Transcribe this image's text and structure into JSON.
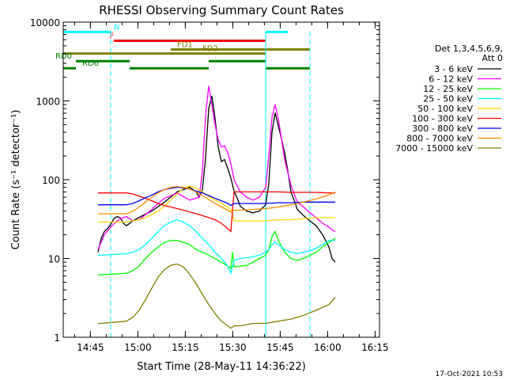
{
  "chart_data": {
    "type": "line",
    "title": "RHESSI Observing Summary Count Rates",
    "xlabel": "Start Time (28-May-11 14:36:22)",
    "ylabel": "Count Rate (s⁻¹ detector⁻¹)",
    "x_units": "minutes after 14:36:22",
    "xlim": [
      0,
      100
    ],
    "ylim": [
      1,
      10000
    ],
    "yscale": "log",
    "grid": false,
    "x_ticks": [
      {
        "value": 8.6,
        "label": "14:45"
      },
      {
        "value": 23.6,
        "label": "15:00"
      },
      {
        "value": 38.6,
        "label": "15:15"
      },
      {
        "value": 53.6,
        "label": "15:30"
      },
      {
        "value": 68.6,
        "label": "15:45"
      },
      {
        "value": 83.6,
        "label": "16:00"
      },
      {
        "value": 98.6,
        "label": "16:15"
      }
    ],
    "y_ticks": [
      {
        "value": 1,
        "label": "1"
      },
      {
        "value": 10,
        "label": "10"
      },
      {
        "value": 100,
        "label": "100"
      },
      {
        "value": 1000,
        "label": "1000"
      },
      {
        "value": 10000,
        "label": "10000"
      }
    ],
    "legend_header": [
      "Det 1,3,4,5,6,9,",
      "Att 0"
    ],
    "legend_position": "right",
    "series": [
      {
        "name": "3 - 6 keV",
        "color": "#000000",
        "x": [
          11,
          12,
          13,
          14,
          15,
          16,
          17,
          18,
          19,
          20,
          22,
          25,
          28,
          32,
          36,
          40,
          42,
          43,
          44,
          45,
          46,
          47,
          48,
          49,
          50,
          51,
          52,
          53,
          54,
          55,
          56,
          58,
          60,
          62,
          64,
          65,
          66,
          67,
          68,
          69,
          70,
          71,
          72,
          73,
          74,
          76,
          78,
          80,
          82,
          84,
          85,
          86
        ],
        "y": [
          12,
          18,
          22,
          24,
          27,
          32,
          34,
          33,
          28,
          26,
          30,
          35,
          40,
          52,
          70,
          80,
          70,
          60,
          75,
          190,
          800,
          1150,
          600,
          260,
          170,
          180,
          140,
          105,
          72,
          58,
          46,
          40,
          38,
          40,
          48,
          90,
          400,
          710,
          480,
          330,
          220,
          130,
          70,
          55,
          42,
          35,
          30,
          26,
          20,
          14,
          10,
          9
        ]
      },
      {
        "name": "6 - 12 keV",
        "color": "#ff00ff",
        "x": [
          11,
          13,
          15,
          17,
          19,
          20,
          22,
          24,
          26,
          28,
          30,
          32,
          36,
          40,
          43,
          44,
          45,
          46,
          47,
          48,
          49,
          50,
          51,
          52,
          53,
          54,
          56,
          58,
          60,
          62,
          64,
          65,
          66,
          67,
          68,
          69,
          70,
          72,
          74,
          76,
          78,
          80,
          82,
          84,
          85,
          86
        ],
        "y": [
          13,
          20,
          25,
          30,
          33,
          34,
          30,
          31,
          36,
          42,
          50,
          58,
          68,
          55,
          60,
          130,
          640,
          1550,
          900,
          500,
          320,
          260,
          270,
          220,
          160,
          100,
          70,
          60,
          55,
          60,
          80,
          200,
          620,
          900,
          600,
          330,
          180,
          85,
          52,
          45,
          38,
          33,
          28,
          25,
          23,
          22
        ]
      },
      {
        "name": "12 - 25 keV",
        "color": "#00ff00",
        "x": [
          11,
          12,
          20,
          22,
          24,
          26,
          28,
          30,
          32,
          34,
          36,
          38,
          40,
          42,
          44,
          46,
          48,
          50,
          52,
          53,
          53.5,
          54,
          56,
          58,
          60,
          62,
          64,
          65,
          66,
          67,
          68,
          70,
          72,
          74,
          76,
          78,
          80,
          82,
          84,
          86
        ],
        "y": [
          6.2,
          6.2,
          6.5,
          7,
          8,
          10,
          12,
          14,
          16,
          17,
          17,
          16,
          15,
          13,
          12,
          11,
          10,
          9,
          8,
          7.5,
          12,
          7.8,
          8,
          8.2,
          9,
          10,
          11,
          13,
          19,
          22,
          17,
          12,
          10,
          9.5,
          10,
          11,
          12,
          14,
          16,
          18
        ]
      },
      {
        "name": "25 - 50 keV",
        "color": "#00ffff",
        "x": [
          11,
          12,
          20,
          22,
          24,
          26,
          28,
          30,
          32,
          34,
          36,
          38,
          40,
          42,
          44,
          46,
          48,
          50,
          52,
          53,
          54,
          56,
          58,
          60,
          62,
          64,
          65,
          66,
          67,
          68,
          70,
          72,
          74,
          76,
          78,
          80,
          82,
          84,
          86
        ],
        "y": [
          11,
          11,
          11.5,
          12,
          13,
          15,
          18,
          22,
          26,
          29,
          31,
          29,
          26,
          22,
          18,
          15,
          12,
          10,
          8,
          6.5,
          9.5,
          10,
          10.2,
          10.5,
          11,
          12,
          13,
          15,
          16,
          15,
          13,
          12,
          11.5,
          12,
          12.5,
          13.5,
          15,
          17,
          17
        ]
      },
      {
        "name": "50 - 100 keV",
        "color": "#ffd700",
        "x": [
          11,
          12,
          20,
          22,
          24,
          26,
          28,
          30,
          32,
          34,
          36,
          38,
          40,
          42,
          44,
          46,
          48,
          50,
          52,
          53,
          54,
          56,
          60,
          64,
          68,
          72,
          76,
          80,
          84,
          86
        ],
        "y": [
          29,
          29,
          29,
          30,
          31,
          33,
          36,
          40,
          46,
          55,
          66,
          78,
          83,
          78,
          70,
          61,
          55,
          50,
          45,
          42,
          30,
          30,
          30,
          30,
          31,
          31,
          32,
          33,
          33,
          33
        ]
      },
      {
        "name": "100 - 300 keV",
        "color": "#ff0000",
        "x": [
          11,
          12,
          20,
          22,
          24,
          26,
          28,
          30,
          32,
          34,
          36,
          38,
          40,
          42,
          44,
          46,
          48,
          50,
          52,
          53,
          54,
          56,
          60,
          64,
          68,
          72,
          76,
          80,
          84,
          86
        ],
        "y": [
          68,
          68,
          68,
          66,
          62,
          58,
          54,
          50,
          47,
          45,
          43,
          41,
          39,
          37,
          35,
          33,
          31,
          28,
          24,
          22,
          70,
          70,
          70,
          70,
          70,
          69,
          69,
          69,
          68,
          68
        ]
      },
      {
        "name": "300 - 800 keV",
        "color": "#0000ff",
        "x": [
          11,
          12,
          20,
          22,
          24,
          26,
          28,
          30,
          32,
          34,
          36,
          38,
          40,
          42,
          44,
          46,
          48,
          50,
          52,
          53,
          54,
          56,
          60,
          64,
          68,
          72,
          76,
          80,
          84,
          86
        ],
        "y": [
          48,
          48,
          48,
          50,
          54,
          59,
          64,
          70,
          75,
          78,
          80,
          79,
          76,
          72,
          68,
          63,
          58,
          54,
          50,
          47,
          50,
          50,
          50,
          50,
          51,
          51,
          52,
          52,
          52,
          52
        ]
      },
      {
        "name": "800 - 7000 keV",
        "color": "#ff8c00",
        "x": [
          11,
          12,
          20,
          22,
          24,
          26,
          28,
          30,
          32,
          34,
          36,
          38,
          40,
          42,
          44,
          46,
          48,
          50,
          52,
          53,
          54,
          56,
          60,
          64,
          68,
          72,
          76,
          80,
          84,
          86
        ],
        "y": [
          37,
          37,
          37,
          40,
          45,
          52,
          60,
          68,
          75,
          80,
          82,
          80,
          76,
          70,
          63,
          56,
          50,
          45,
          41,
          39,
          41,
          41,
          42,
          43,
          45,
          48,
          52,
          57,
          64,
          70
        ]
      },
      {
        "name": "7000 - 15000 keV",
        "color": "#808000",
        "x": [
          11,
          12,
          20,
          22,
          24,
          26,
          28,
          30,
          32,
          34,
          36,
          38,
          40,
          42,
          44,
          46,
          48,
          50,
          52,
          53,
          54,
          56,
          60,
          64,
          68,
          72,
          76,
          80,
          84,
          86
        ],
        "y": [
          1.5,
          1.5,
          1.6,
          1.8,
          2.2,
          3,
          4.2,
          5.8,
          7.2,
          8.2,
          8.5,
          7.8,
          6.3,
          4.8,
          3.5,
          2.6,
          2,
          1.6,
          1.4,
          1.3,
          1.4,
          1.4,
          1.5,
          1.5,
          1.6,
          1.7,
          1.9,
          2.2,
          2.6,
          3.2
        ]
      }
    ],
    "status_bars": [
      {
        "label": "N",
        "color": "#00ffff",
        "y": 7500,
        "segments": [
          [
            0,
            15
          ],
          [
            64,
            71
          ]
        ]
      },
      {
        "label": "F",
        "color": "#ff0000",
        "y": 5800,
        "segments": [
          [
            16,
            64
          ]
        ]
      },
      {
        "label": "FD1",
        "color": "#808000",
        "y": 4500,
        "segments": [
          [
            34,
            78
          ]
        ]
      },
      {
        "label": "FD2",
        "color": "#808000",
        "y": 4000,
        "segments": [
          [
            0,
            64
          ]
        ]
      },
      {
        "label": "RD0",
        "color": "#008000",
        "y": 3200,
        "segments": [
          [
            4,
            21
          ],
          [
            46,
            64
          ]
        ]
      },
      {
        "label": "RD6",
        "color": "#008000",
        "y": 2600,
        "segments": [
          [
            0,
            4
          ],
          [
            21,
            46
          ],
          [
            64,
            78
          ]
        ]
      }
    ],
    "night_boundaries": [
      0,
      15,
      64,
      78
    ]
  },
  "footer": {
    "timestamp": "17-Oct-2021 10:53"
  }
}
